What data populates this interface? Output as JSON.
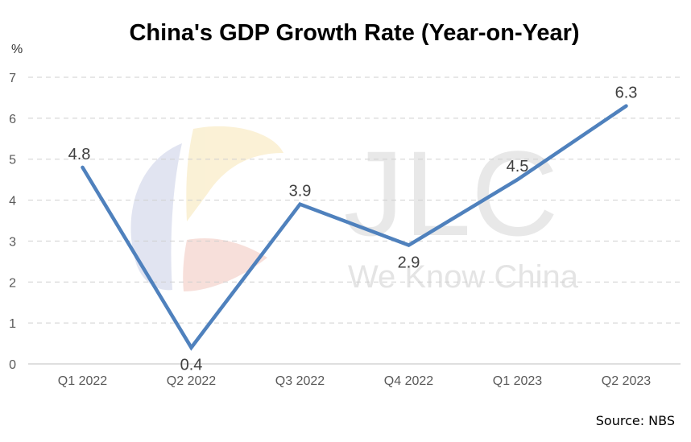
{
  "chart_data": {
    "type": "line",
    "title": "China's GDP Growth Rate (Year-on-Year)",
    "ylabel": "%",
    "xlabel": "",
    "categories": [
      "Q1 2022",
      "Q2 2022",
      "Q3 2022",
      "Q4 2022",
      "Q1 2023",
      "Q2 2023"
    ],
    "series": [
      {
        "values": [
          4.8,
          0.4,
          3.9,
          2.9,
          4.5,
          6.3
        ],
        "color": "#4f81bd"
      }
    ],
    "data_labels": [
      "4.8",
      "0.4",
      "3.9",
      "2.9",
      "4.5",
      "6.3"
    ],
    "ylim": [
      0,
      7
    ],
    "yticks": [
      0,
      1,
      2,
      3,
      4,
      5,
      6,
      7
    ],
    "grid": true,
    "legend": "none"
  },
  "watermark": {
    "text_main": "JLC",
    "text_sub": "We Know China",
    "colors": [
      "#c9cfe6",
      "#f7e6b5",
      "#f1c6bd"
    ]
  },
  "source": "Source: NBS"
}
